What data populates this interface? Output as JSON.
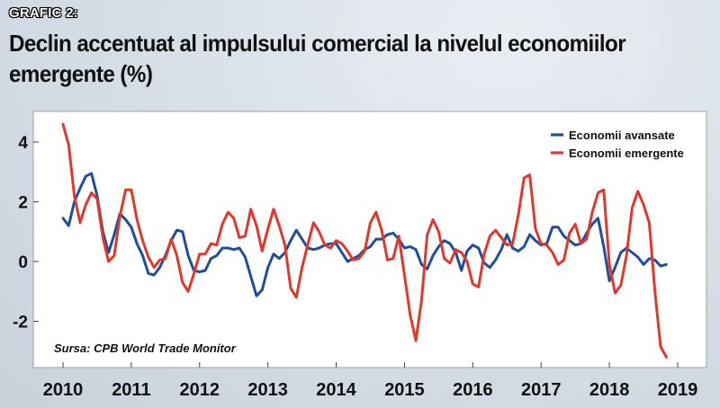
{
  "header": {
    "label": "GRAFIC 2:",
    "title": "Declin accentuat al impulsului comercial la nivelul economiilor emergente (%)"
  },
  "source": "Sursa: CPB World Trade Monitor",
  "colors": {
    "advanced": "#1f4e9a",
    "emerging": "#e0382c"
  },
  "chart_data": {
    "type": "line",
    "x_start": "2010-01",
    "x_step": "month",
    "xlim": [
      "2010-01",
      "2019-04"
    ],
    "x_tick_labels": [
      "2010",
      "2011",
      "2012",
      "2013",
      "2014",
      "2015",
      "2016",
      "2017",
      "2018",
      "2019"
    ],
    "ylim": [
      -3.5,
      5
    ],
    "y_ticks": [
      4,
      2,
      0,
      -2
    ],
    "y_tick_labels": [
      "4",
      "2",
      "0",
      "-2"
    ],
    "grid": false,
    "legend_position": "top-right",
    "series": [
      {
        "name": "Economii avansate",
        "color": "#1f4e9a",
        "values": [
          1.45,
          1.2,
          2.0,
          2.45,
          2.85,
          2.95,
          2.2,
          1.0,
          0.3,
          0.9,
          1.6,
          1.4,
          1.15,
          0.6,
          0.2,
          -0.4,
          -0.45,
          -0.2,
          0.2,
          0.7,
          1.05,
          1.0,
          0.2,
          -0.3,
          -0.35,
          -0.3,
          0.1,
          0.2,
          0.45,
          0.45,
          0.4,
          0.45,
          0.15,
          -0.5,
          -1.15,
          -0.95,
          -0.2,
          0.25,
          0.1,
          0.3,
          0.7,
          1.05,
          0.75,
          0.45,
          0.4,
          0.45,
          0.55,
          0.6,
          0.6,
          0.3,
          0.0,
          0.1,
          0.2,
          0.4,
          0.5,
          0.75,
          0.75,
          0.9,
          0.95,
          0.75,
          0.45,
          0.5,
          0.4,
          -0.1,
          -0.25,
          0.2,
          0.5,
          0.7,
          0.6,
          0.3,
          -0.3,
          0.35,
          0.55,
          0.45,
          -0.05,
          -0.2,
          0.05,
          0.4,
          0.9,
          0.45,
          0.35,
          0.5,
          0.9,
          0.7,
          0.55,
          0.6,
          1.15,
          1.15,
          0.85,
          0.7,
          0.55,
          0.6,
          0.95,
          1.25,
          1.45,
          0.5,
          -0.65,
          -0.2,
          0.3,
          0.45,
          0.3,
          0.15,
          -0.1,
          0.1,
          0.05,
          -0.15,
          -0.1
        ]
      },
      {
        "name": "Economii emergente",
        "color": "#e0382c",
        "values": [
          4.6,
          3.9,
          2.2,
          1.3,
          1.9,
          2.3,
          2.1,
          0.8,
          0.0,
          0.2,
          1.5,
          2.4,
          2.4,
          1.4,
          0.7,
          0.15,
          -0.2,
          0.05,
          0.1,
          0.75,
          0.2,
          -0.7,
          -1.0,
          -0.4,
          0.25,
          0.25,
          0.6,
          0.55,
          1.25,
          1.65,
          1.45,
          0.8,
          0.85,
          1.75,
          1.2,
          0.35,
          1.1,
          1.75,
          1.2,
          0.55,
          -0.9,
          -1.2,
          -0.2,
          0.55,
          1.3,
          1.0,
          0.55,
          0.45,
          0.7,
          0.6,
          0.35,
          0.05,
          0.1,
          0.35,
          1.3,
          1.65,
          1.05,
          0.05,
          0.1,
          0.85,
          -0.45,
          -1.8,
          -2.65,
          -1.3,
          0.9,
          1.4,
          1.0,
          0.1,
          -0.05,
          0.4,
          0.3,
          0.0,
          -0.75,
          -0.85,
          0.25,
          0.85,
          1.05,
          0.8,
          0.55,
          0.6,
          1.55,
          2.8,
          2.9,
          1.1,
          0.6,
          0.55,
          0.3,
          -0.1,
          0.05,
          0.95,
          1.25,
          0.6,
          0.75,
          1.65,
          2.3,
          2.4,
          -0.1,
          -1.05,
          -0.8,
          0.2,
          1.8,
          2.35,
          1.9,
          1.3,
          -1.0,
          -2.85,
          -3.2
        ]
      }
    ]
  }
}
